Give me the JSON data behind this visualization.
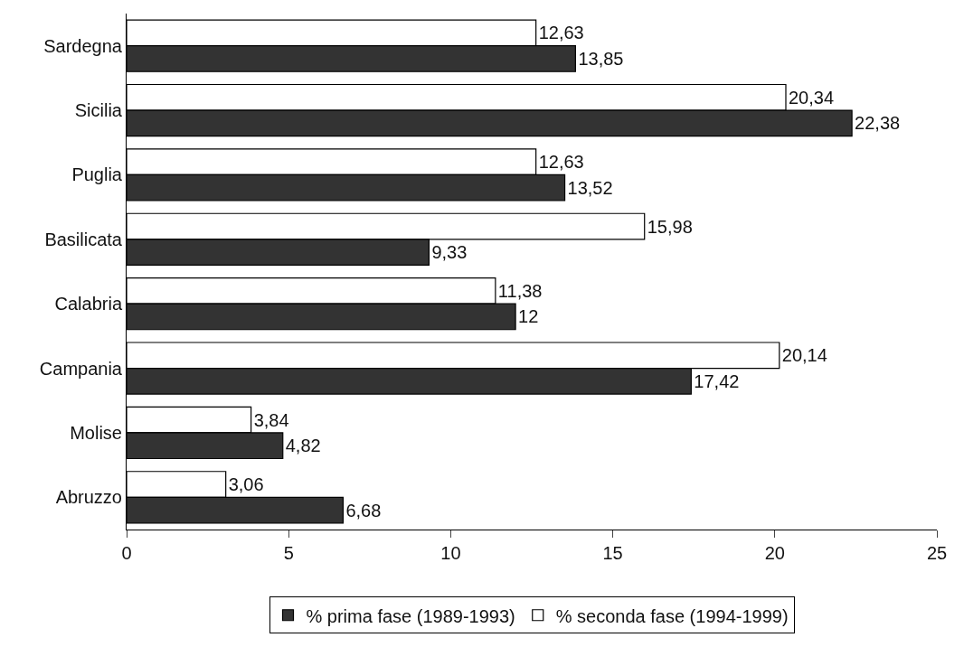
{
  "chart_data": {
    "type": "bar",
    "orientation": "horizontal",
    "categories": [
      "Sardegna",
      "Sicilia",
      "Puglia",
      "Basilicata",
      "Calabria",
      "Campania",
      "Molise",
      "Abruzzo"
    ],
    "series": [
      {
        "name": "% prima fase (1989-1993)",
        "color": "#333333",
        "values": [
          13.85,
          22.38,
          13.52,
          9.33,
          12,
          17.42,
          4.82,
          6.68
        ],
        "value_labels": [
          "13,85",
          "22,38",
          "13,52",
          "9,33",
          "12",
          "17,42",
          "4,82",
          "6,68"
        ]
      },
      {
        "name": "% seconda fase (1994-1999)",
        "color": "#ffffff",
        "values": [
          12.63,
          20.34,
          12.63,
          15.98,
          11.38,
          20.14,
          3.84,
          3.06
        ],
        "value_labels": [
          "12,63",
          "20,34",
          "12,63",
          "15,98",
          "11,38",
          "20,14",
          "3,84",
          "3,06"
        ]
      }
    ],
    "xlim": [
      0,
      25
    ],
    "xticks": [
      0,
      5,
      10,
      15,
      20,
      25
    ],
    "grid": false,
    "legend": "bottom"
  }
}
